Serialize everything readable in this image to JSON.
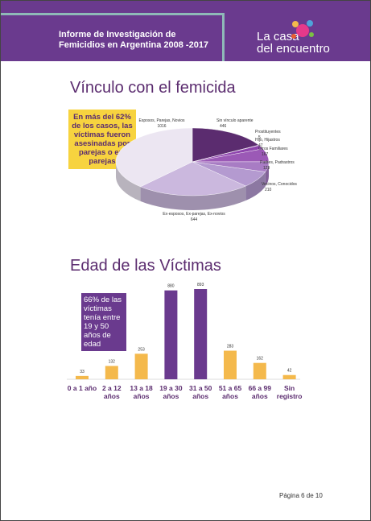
{
  "header": {
    "title": "Informe de Investigación de Femicidios en Argentina 2008 -2017",
    "logo_line1": "La casa",
    "logo_line2": "del encuentro"
  },
  "sections": [
    "Vínculo con el femicida",
    "Edad de las Víctimas"
  ],
  "callouts": {
    "pie": "En más del 62% de los casos, las víctimas fueron asesinadas por parejas o ex-parejas",
    "bar": "66% de las víctimas tenía entre 19 y 50 años de edad"
  },
  "chart_data": [
    {
      "type": "pie",
      "categories": [
        "Sin vínculo aparente",
        "Prostituyentes",
        "Hijo, Hijastros",
        "Otros Familiares",
        "Padres, Padrastros",
        "Vecinos, Conocidos",
        "Ex-esposos, Ex-parejas, Ex-novios",
        "Esposos, Parejas, Novios"
      ],
      "values": [
        446,
        5,
        47,
        167,
        129,
        210,
        644,
        1016
      ],
      "colors": [
        "#5b2c6f",
        "#7d3c98",
        "#8e44ad",
        "#9b59b6",
        "#a87cc4",
        "#b49ad0",
        "#cbb8de",
        "#ece6f2"
      ]
    },
    {
      "type": "bar",
      "categories": [
        "0 a 1 año",
        "2 a 12 años",
        "13 a 18 años",
        "19 a 30 años",
        "31 a 50 años",
        "51 a 65 años",
        "66 a 99 años",
        "Sin registro"
      ],
      "values": [
        33,
        132,
        253,
        880,
        893,
        283,
        162,
        42
      ],
      "colors": [
        "#f4b94c",
        "#f4b94c",
        "#f4b94c",
        "#6a3a8e",
        "#6a3a8e",
        "#f4b94c",
        "#f4b94c",
        "#f4b94c"
      ]
    }
  ],
  "footer": {
    "page": "Página 6 de 10"
  }
}
